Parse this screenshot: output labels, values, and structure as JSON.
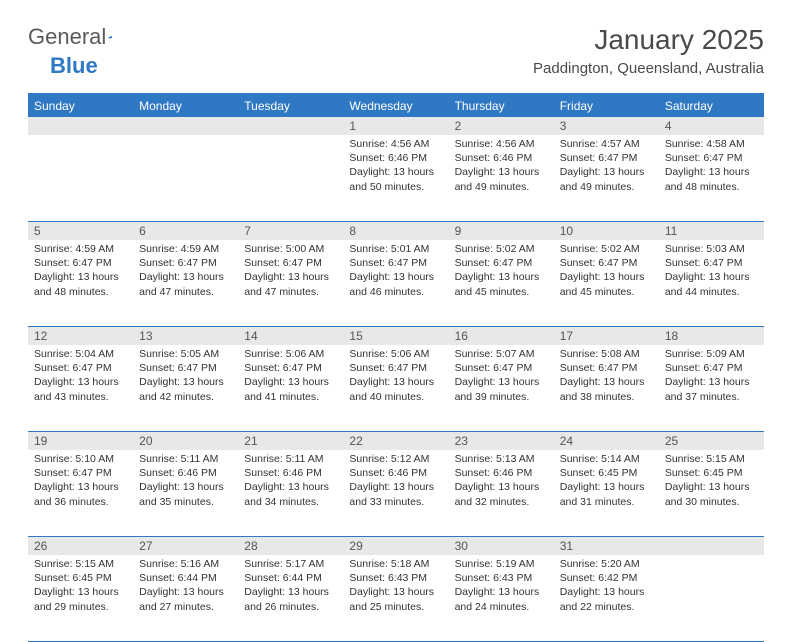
{
  "logo": {
    "part1": "General",
    "part2": "Blue"
  },
  "title": "January 2025",
  "location": "Paddington, Queensland, Australia",
  "header_bg": "#2f78c4",
  "daynum_bg": "#e8e8e8",
  "border_color": "#2f78c4",
  "weekdays": [
    "Sunday",
    "Monday",
    "Tuesday",
    "Wednesday",
    "Thursday",
    "Friday",
    "Saturday"
  ],
  "weeks": [
    [
      null,
      null,
      null,
      {
        "n": "1",
        "sr": "Sunrise: 4:56 AM",
        "ss": "Sunset: 6:46 PM",
        "d1": "Daylight: 13 hours",
        "d2": "and 50 minutes."
      },
      {
        "n": "2",
        "sr": "Sunrise: 4:56 AM",
        "ss": "Sunset: 6:46 PM",
        "d1": "Daylight: 13 hours",
        "d2": "and 49 minutes."
      },
      {
        "n": "3",
        "sr": "Sunrise: 4:57 AM",
        "ss": "Sunset: 6:47 PM",
        "d1": "Daylight: 13 hours",
        "d2": "and 49 minutes."
      },
      {
        "n": "4",
        "sr": "Sunrise: 4:58 AM",
        "ss": "Sunset: 6:47 PM",
        "d1": "Daylight: 13 hours",
        "d2": "and 48 minutes."
      }
    ],
    [
      {
        "n": "5",
        "sr": "Sunrise: 4:59 AM",
        "ss": "Sunset: 6:47 PM",
        "d1": "Daylight: 13 hours",
        "d2": "and 48 minutes."
      },
      {
        "n": "6",
        "sr": "Sunrise: 4:59 AM",
        "ss": "Sunset: 6:47 PM",
        "d1": "Daylight: 13 hours",
        "d2": "and 47 minutes."
      },
      {
        "n": "7",
        "sr": "Sunrise: 5:00 AM",
        "ss": "Sunset: 6:47 PM",
        "d1": "Daylight: 13 hours",
        "d2": "and 47 minutes."
      },
      {
        "n": "8",
        "sr": "Sunrise: 5:01 AM",
        "ss": "Sunset: 6:47 PM",
        "d1": "Daylight: 13 hours",
        "d2": "and 46 minutes."
      },
      {
        "n": "9",
        "sr": "Sunrise: 5:02 AM",
        "ss": "Sunset: 6:47 PM",
        "d1": "Daylight: 13 hours",
        "d2": "and 45 minutes."
      },
      {
        "n": "10",
        "sr": "Sunrise: 5:02 AM",
        "ss": "Sunset: 6:47 PM",
        "d1": "Daylight: 13 hours",
        "d2": "and 45 minutes."
      },
      {
        "n": "11",
        "sr": "Sunrise: 5:03 AM",
        "ss": "Sunset: 6:47 PM",
        "d1": "Daylight: 13 hours",
        "d2": "and 44 minutes."
      }
    ],
    [
      {
        "n": "12",
        "sr": "Sunrise: 5:04 AM",
        "ss": "Sunset: 6:47 PM",
        "d1": "Daylight: 13 hours",
        "d2": "and 43 minutes."
      },
      {
        "n": "13",
        "sr": "Sunrise: 5:05 AM",
        "ss": "Sunset: 6:47 PM",
        "d1": "Daylight: 13 hours",
        "d2": "and 42 minutes."
      },
      {
        "n": "14",
        "sr": "Sunrise: 5:06 AM",
        "ss": "Sunset: 6:47 PM",
        "d1": "Daylight: 13 hours",
        "d2": "and 41 minutes."
      },
      {
        "n": "15",
        "sr": "Sunrise: 5:06 AM",
        "ss": "Sunset: 6:47 PM",
        "d1": "Daylight: 13 hours",
        "d2": "and 40 minutes."
      },
      {
        "n": "16",
        "sr": "Sunrise: 5:07 AM",
        "ss": "Sunset: 6:47 PM",
        "d1": "Daylight: 13 hours",
        "d2": "and 39 minutes."
      },
      {
        "n": "17",
        "sr": "Sunrise: 5:08 AM",
        "ss": "Sunset: 6:47 PM",
        "d1": "Daylight: 13 hours",
        "d2": "and 38 minutes."
      },
      {
        "n": "18",
        "sr": "Sunrise: 5:09 AM",
        "ss": "Sunset: 6:47 PM",
        "d1": "Daylight: 13 hours",
        "d2": "and 37 minutes."
      }
    ],
    [
      {
        "n": "19",
        "sr": "Sunrise: 5:10 AM",
        "ss": "Sunset: 6:47 PM",
        "d1": "Daylight: 13 hours",
        "d2": "and 36 minutes."
      },
      {
        "n": "20",
        "sr": "Sunrise: 5:11 AM",
        "ss": "Sunset: 6:46 PM",
        "d1": "Daylight: 13 hours",
        "d2": "and 35 minutes."
      },
      {
        "n": "21",
        "sr": "Sunrise: 5:11 AM",
        "ss": "Sunset: 6:46 PM",
        "d1": "Daylight: 13 hours",
        "d2": "and 34 minutes."
      },
      {
        "n": "22",
        "sr": "Sunrise: 5:12 AM",
        "ss": "Sunset: 6:46 PM",
        "d1": "Daylight: 13 hours",
        "d2": "and 33 minutes."
      },
      {
        "n": "23",
        "sr": "Sunrise: 5:13 AM",
        "ss": "Sunset: 6:46 PM",
        "d1": "Daylight: 13 hours",
        "d2": "and 32 minutes."
      },
      {
        "n": "24",
        "sr": "Sunrise: 5:14 AM",
        "ss": "Sunset: 6:45 PM",
        "d1": "Daylight: 13 hours",
        "d2": "and 31 minutes."
      },
      {
        "n": "25",
        "sr": "Sunrise: 5:15 AM",
        "ss": "Sunset: 6:45 PM",
        "d1": "Daylight: 13 hours",
        "d2": "and 30 minutes."
      }
    ],
    [
      {
        "n": "26",
        "sr": "Sunrise: 5:15 AM",
        "ss": "Sunset: 6:45 PM",
        "d1": "Daylight: 13 hours",
        "d2": "and 29 minutes."
      },
      {
        "n": "27",
        "sr": "Sunrise: 5:16 AM",
        "ss": "Sunset: 6:44 PM",
        "d1": "Daylight: 13 hours",
        "d2": "and 27 minutes."
      },
      {
        "n": "28",
        "sr": "Sunrise: 5:17 AM",
        "ss": "Sunset: 6:44 PM",
        "d1": "Daylight: 13 hours",
        "d2": "and 26 minutes."
      },
      {
        "n": "29",
        "sr": "Sunrise: 5:18 AM",
        "ss": "Sunset: 6:43 PM",
        "d1": "Daylight: 13 hours",
        "d2": "and 25 minutes."
      },
      {
        "n": "30",
        "sr": "Sunrise: 5:19 AM",
        "ss": "Sunset: 6:43 PM",
        "d1": "Daylight: 13 hours",
        "d2": "and 24 minutes."
      },
      {
        "n": "31",
        "sr": "Sunrise: 5:20 AM",
        "ss": "Sunset: 6:42 PM",
        "d1": "Daylight: 13 hours",
        "d2": "and 22 minutes."
      },
      null
    ]
  ]
}
